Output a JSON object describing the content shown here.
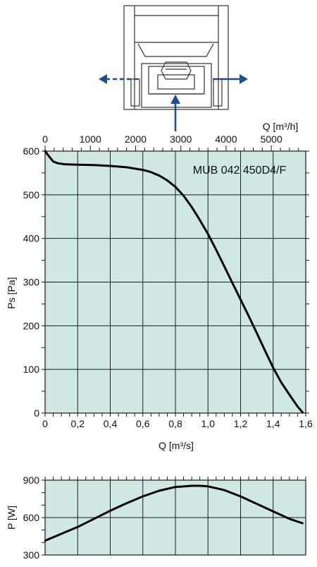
{
  "colors": {
    "plot_bg": "#cfe8e6",
    "grid": "#1a1a1a",
    "curve": "#000000",
    "arrow": "#1e4f8c"
  },
  "icons": {
    "schematic": "fan-unit-schematic-icon",
    "flow_arrows": "airflow-arrow-icon"
  },
  "chart_data": [
    {
      "type": "line",
      "title": "MUB 042 450D4/F",
      "xlabel": "Q [m³/s]",
      "ylabel": "Ps [Pa]",
      "xlim": [
        0,
        1.6
      ],
      "ylim": [
        0,
        600
      ],
      "x_ticks": [
        "0",
        "0,2",
        "0,4",
        "0,6",
        "0,8",
        "1,0",
        "1,2",
        "1,4",
        "1,6"
      ],
      "y_ticks": [
        "0",
        "100",
        "200",
        "300",
        "400",
        "500",
        "600"
      ],
      "secondary_xlabel": "Q [m³/h]",
      "secondary_xlim": [
        0,
        5760
      ],
      "secondary_x_ticks": [
        "0",
        "1000",
        "2000",
        "3000",
        "4000",
        "5000"
      ],
      "grid": true,
      "series": [
        {
          "x": [
            0,
            0.02,
            0.05,
            0.08,
            0.12,
            0.2,
            0.3,
            0.4,
            0.5,
            0.6,
            0.65,
            0.7,
            0.75,
            0.8,
            0.85,
            0.9,
            0.95,
            1.0,
            1.05,
            1.1,
            1.15,
            1.2,
            1.25,
            1.3,
            1.35,
            1.4,
            1.45,
            1.5,
            1.55,
            1.58
          ],
          "y": [
            600,
            590,
            576,
            572,
            570,
            569,
            568,
            566,
            563,
            557,
            552,
            544,
            533,
            518,
            498,
            472,
            442,
            410,
            374,
            336,
            298,
            260,
            222,
            183,
            143,
            104,
            70,
            42,
            15,
            2
          ]
        }
      ]
    },
    {
      "type": "line",
      "xlabel": "",
      "ylabel": "P [W]",
      "xlim": [
        0,
        1.6
      ],
      "ylim": [
        300,
        900
      ],
      "y_ticks": [
        "300",
        "600",
        "900"
      ],
      "grid": true,
      "series": [
        {
          "x": [
            0,
            0.1,
            0.2,
            0.3,
            0.4,
            0.5,
            0.6,
            0.7,
            0.8,
            0.9,
            0.95,
            1.0,
            1.1,
            1.2,
            1.3,
            1.4,
            1.5,
            1.58
          ],
          "y": [
            415,
            470,
            525,
            590,
            655,
            715,
            770,
            815,
            845,
            855,
            855,
            850,
            820,
            770,
            710,
            650,
            590,
            555
          ]
        }
      ]
    }
  ]
}
